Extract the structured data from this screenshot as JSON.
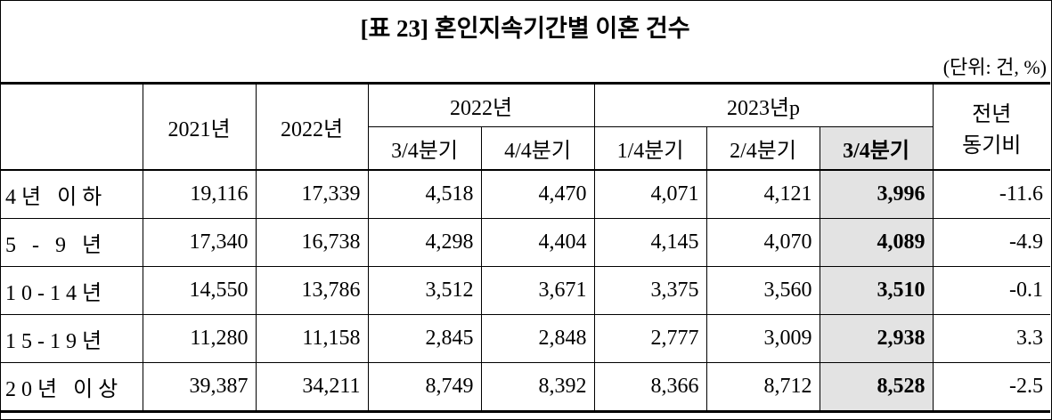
{
  "header": {
    "title": "[표 23] 혼인지속기간별 이혼 건수",
    "unit": "(단위: 건, %)"
  },
  "table": {
    "columns": {
      "y2021": "2021년",
      "y2022": "2022년",
      "g2022": "2022년",
      "g2023": "2023년p",
      "change": [
        "전년",
        "동기비"
      ],
      "quarters": [
        "3/4분기",
        "4/4분기",
        "1/4분기",
        "2/4분기",
        "3/4분기"
      ]
    },
    "rows": [
      [
        "4년 이하",
        "19,116",
        "17,339",
        "4,518",
        "4,470",
        "4,071",
        "4,121",
        "3,996",
        "-11.6"
      ],
      [
        "5 - 9 년",
        "17,340",
        "16,738",
        "4,298",
        "4,404",
        "4,145",
        "4,070",
        "4,089",
        "-4.9"
      ],
      [
        "10-14년",
        "14,550",
        "13,786",
        "3,512",
        "3,671",
        "3,375",
        "3,560",
        "3,510",
        "-0.1"
      ],
      [
        "15-19년",
        "11,280",
        "11,158",
        "2,845",
        "2,848",
        "2,777",
        "3,009",
        "2,938",
        "3.3"
      ],
      [
        "20년 이상",
        "39,387",
        "34,211",
        "8,749",
        "8,392",
        "8,366",
        "8,712",
        "8,528",
        "-2.5"
      ]
    ]
  }
}
